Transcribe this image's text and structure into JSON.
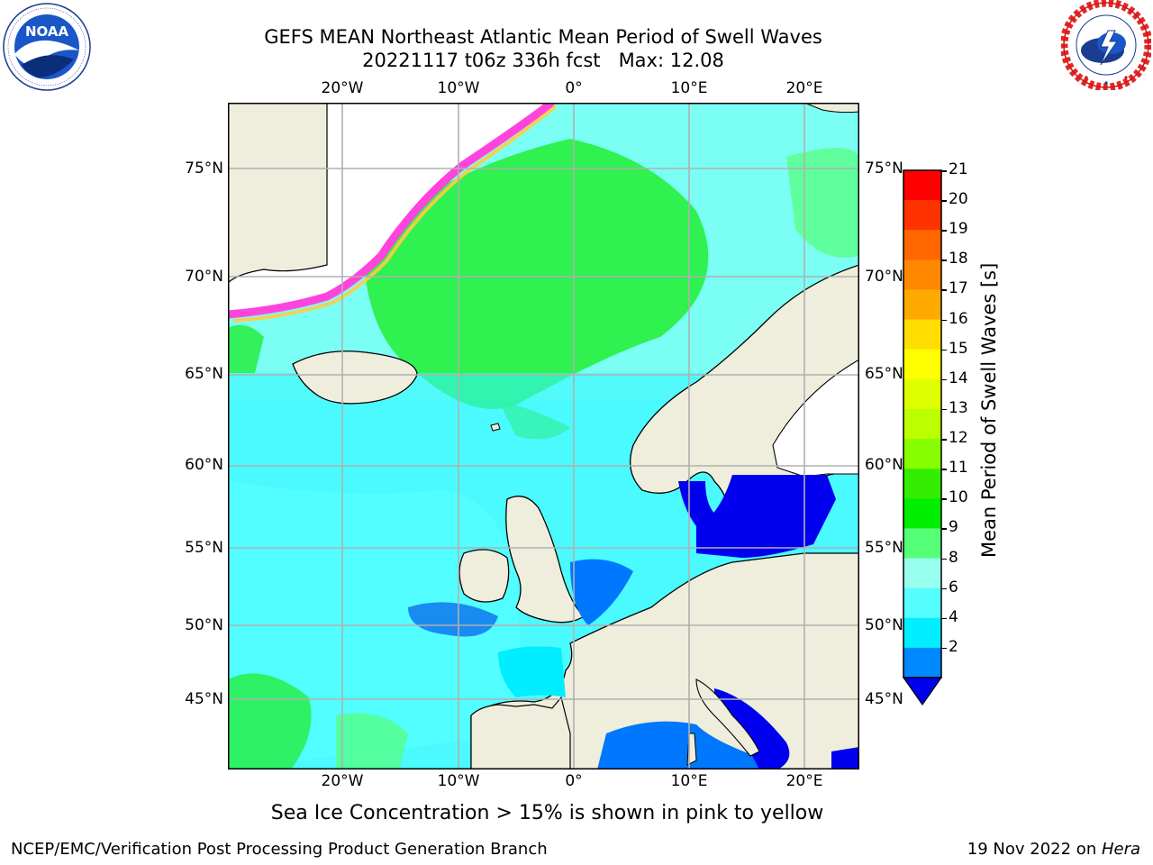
{
  "header": {
    "title_line1": "GEFS MEAN Northeast Atlantic Mean Period of Swell Waves",
    "title_line2": "20221117 t06z 336h fcst   Max: 12.08"
  },
  "logos": {
    "left": {
      "text": "NOAA",
      "ring_text": "NATIONAL OCEANIC AND ATMOSPHERIC ADMINISTRATION · U.S. DEPARTMENT OF COMMERCE"
    },
    "right": {
      "ring_text": "NATIONAL WEATHER SERVICE"
    }
  },
  "map": {
    "lon_labels": [
      "20°W",
      "10°W",
      "0°",
      "10°E",
      "20°E"
    ],
    "lat_labels": [
      "75°N",
      "70°N",
      "65°N",
      "60°N",
      "55°N",
      "50°N",
      "45°N"
    ],
    "colors": {
      "land": "#efeedc",
      "ocean_light": "#66ffff",
      "ocean_mid": "#00eeff",
      "ocean_green": "#22ee55",
      "ice_edge": "#ff44dd",
      "grid": "#b0b0b0"
    }
  },
  "colorbar": {
    "label": "Mean Period of Swell Waves [s]",
    "ticks": [
      "21",
      "20",
      "19",
      "18",
      "17",
      "16",
      "15",
      "14",
      "13",
      "12",
      "11",
      "10",
      "9",
      "8",
      "6",
      "4",
      "2"
    ],
    "segment_colors": [
      "#ff0000",
      "#ff3300",
      "#ff6600",
      "#ff8800",
      "#ffaa00",
      "#ffdd00",
      "#ffff00",
      "#ddff00",
      "#bbff00",
      "#88ff00",
      "#33ee00",
      "#00ee00",
      "#55ff77",
      "#99ffee",
      "#55ffff",
      "#00eeff",
      "#0088ff"
    ],
    "extend_color": "#0000ee"
  },
  "caption": "Sea Ice Concentration > 15% is shown in pink to yellow",
  "footer": {
    "left": "NCEP/EMC/Verification Post Processing Product Generation Branch",
    "right_prefix": "19 Nov 2022 on ",
    "right_host": "Hera"
  }
}
